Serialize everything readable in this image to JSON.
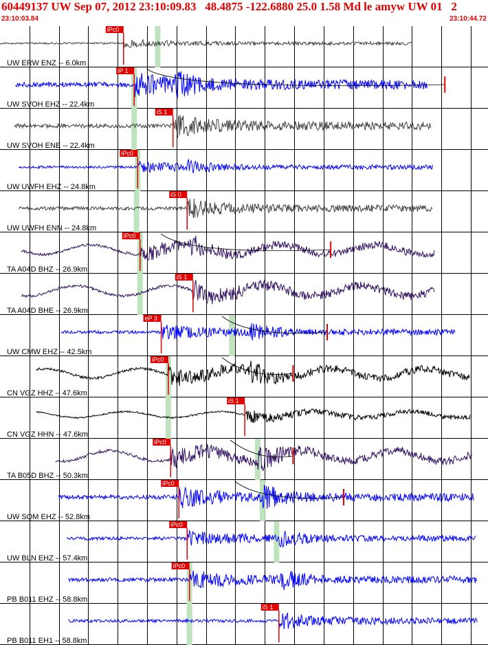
{
  "header": {
    "title": "60449137 UW Sep 07, 2012 23:10:09.83   48.4875 -122.6880 25.0 1.58 Md le amyw UW 01   2",
    "start_time": "23:10:03.84",
    "end_time": "23:10:44.72"
  },
  "colors": {
    "title": "#e00000",
    "pick": "#e00000",
    "window": "#bfe3bf",
    "grid": "#000000"
  },
  "chart_data": {
    "type": "line",
    "title": "60449137 UW Sep 07, 2012 23:10:09.83   48.4875 -122.6880 25.0 1.58 Md le amyw UW 01   2",
    "x_unit": "time (UTC)",
    "xlim": [
      "23:10:03.84",
      "23:10:44.72"
    ],
    "time_span_seconds": 40.88,
    "grid": "vertical lines every ~2.5 s",
    "traces": [
      {
        "label": "UW ERW ENZ -- 6.0km",
        "color": "#404040",
        "pick": "iPc0",
        "pick_time_s": 10.5,
        "window_time_s": 13.4,
        "start_s": 0.0,
        "end_s": 35.0,
        "amp": 0.25,
        "type": "hf"
      },
      {
        "label": "UW SVOH EHZ -- 22.4km",
        "color": "#0000ff",
        "pick": "iP 1",
        "pick_time_s": 11.4,
        "window_time_s": 11.4,
        "start_s": 1.3,
        "end_s": 36.3,
        "amp": 0.7,
        "type": "hf",
        "s_time_s": 14.8,
        "coda_end_s": 37.8
      },
      {
        "label": "UW SVOH ENE -- 22.4km",
        "color": "#404040",
        "pick": "iS 1",
        "pick_time_s": 14.7,
        "window_time_s": 11.4,
        "start_s": 1.2,
        "end_s": 36.6,
        "amp": 0.6,
        "type": "hf",
        "s_time_s": 14.8
      },
      {
        "label": "UW UWFH EHZ -- 24.8km",
        "color": "#0000ff",
        "pick": "iPc0",
        "pick_time_s": 11.7,
        "window_time_s": 11.7,
        "start_s": 1.6,
        "end_s": 36.8,
        "amp": 0.35,
        "type": "hf",
        "s_time_s": 15.9
      },
      {
        "label": "UW UWFH ENN -- 24.8km",
        "color": "#404040",
        "pick": "iS 0",
        "pick_time_s": 15.9,
        "window_time_s": 11.6,
        "start_s": 1.6,
        "end_s": 36.8,
        "amp": 0.5,
        "type": "hf",
        "s_time_s": 16.0
      },
      {
        "label": "TA A04D BHZ -- 26.9km",
        "color": "#301060",
        "pick": "iPc0",
        "pick_time_s": 11.9,
        "window_time_s": 11.9,
        "start_s": 1.8,
        "end_s": 36.9,
        "amp": 0.55,
        "type": "lp",
        "s_time_s": 16.0,
        "coda_end_s": 28.1
      },
      {
        "label": "TA A04D BHE -- 26.9km",
        "color": "#301060",
        "pick": "iS 1",
        "pick_time_s": 16.4,
        "window_time_s": 11.9,
        "start_s": 1.8,
        "end_s": 36.9,
        "amp": 0.6,
        "type": "lp",
        "s_time_s": 16.4
      },
      {
        "label": "UW CMW EHZ -- 42.5km",
        "color": "#0000ff",
        "pick": "eP 3",
        "pick_time_s": 13.7,
        "window_time_s": 19.7,
        "start_s": 5.2,
        "end_s": 38.7,
        "amp": 0.45,
        "type": "hf",
        "s_time_s": 21.2,
        "coda_end_s": 27.8
      },
      {
        "label": "CN VGZ HHZ -- 47.6km",
        "color": "#000000",
        "pick": "iPc0",
        "pick_time_s": 14.3,
        "window_time_s": 14.3,
        "start_s": 3.1,
        "end_s": 39.9,
        "amp": 0.55,
        "type": "lp",
        "s_time_s": 21.2,
        "coda_end_s": 24.9
      },
      {
        "label": "CN VGZ HHN -- 47.6km",
        "color": "#000000",
        "pick": "iS 1",
        "pick_time_s": 20.8,
        "window_time_s": 14.3,
        "start_s": 3.1,
        "end_s": 40.0,
        "amp": 0.35,
        "type": "lp",
        "s_time_s": 20.8
      },
      {
        "label": "TA B05D BHZ -- 50.3km",
        "color": "#301060",
        "pick": "iPc0",
        "pick_time_s": 14.5,
        "window_time_s": 21.9,
        "start_s": 4.7,
        "end_s": 40.1,
        "amp": 0.6,
        "type": "lp",
        "s_time_s": 21.9,
        "coda_end_s": 24.9
      },
      {
        "label": "UW SQM EHZ -- 52.8km",
        "color": "#0000ff",
        "pick": "iPc0",
        "pick_time_s": 15.2,
        "window_time_s": 22.3,
        "start_s": 5.0,
        "end_s": 40.3,
        "amp": 0.6,
        "type": "hf",
        "s_time_s": 22.3,
        "coda_end_s": 29.2
      },
      {
        "label": "UW BLN EHZ -- 57.4km",
        "color": "#0000ff",
        "pick": "iPc0",
        "pick_time_s": 15.9,
        "window_time_s": 23.5,
        "start_s": 5.7,
        "end_s": 40.4,
        "amp": 0.45,
        "type": "hf",
        "s_time_s": 23.6
      },
      {
        "label": "PB B011 EHZ -- 58.8km",
        "color": "#0000ff",
        "pick": "iPc0",
        "pick_time_s": 16.1,
        "window_time_s": 16.1,
        "start_s": 5.8,
        "end_s": 40.5,
        "amp": 0.55,
        "type": "hf",
        "s_time_s": 23.7
      },
      {
        "label": "PB B011 EH1 -- 58.8km",
        "color": "#0000ff",
        "pick": "iS 1",
        "pick_time_s": 23.7,
        "window_time_s": 16.1,
        "start_s": 5.8,
        "end_s": 40.6,
        "amp": 0.45,
        "type": "hf",
        "s_time_s": 23.7
      }
    ]
  }
}
